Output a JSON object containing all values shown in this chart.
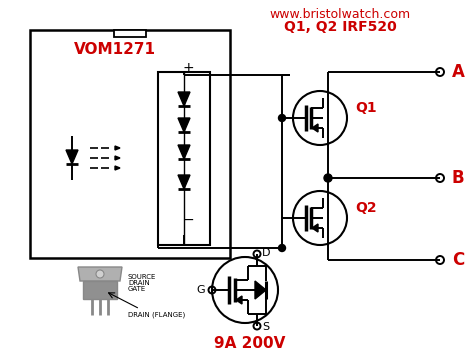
{
  "website": "www.bristolwatch.com",
  "part_label": "Q1, Q2 IRF520",
  "spec_label": "9A 200V",
  "vom_label": "VOM1271",
  "q1_label": "Q1",
  "q2_label": "Q2",
  "label_A": "A",
  "label_B": "B",
  "label_C": "C",
  "label_D": "D",
  "label_G": "G",
  "label_S": "S",
  "label_source": "SOURCE",
  "label_drain": "DRAIN",
  "label_gate": "GATE",
  "label_drain_flange": "DRAIN (FLANGE)",
  "red_color": "#cc0000",
  "black_color": "#000000",
  "gray_color": "#888888",
  "bg_color": "#ffffff",
  "fig_width": 4.74,
  "fig_height": 3.59,
  "dpi": 100
}
